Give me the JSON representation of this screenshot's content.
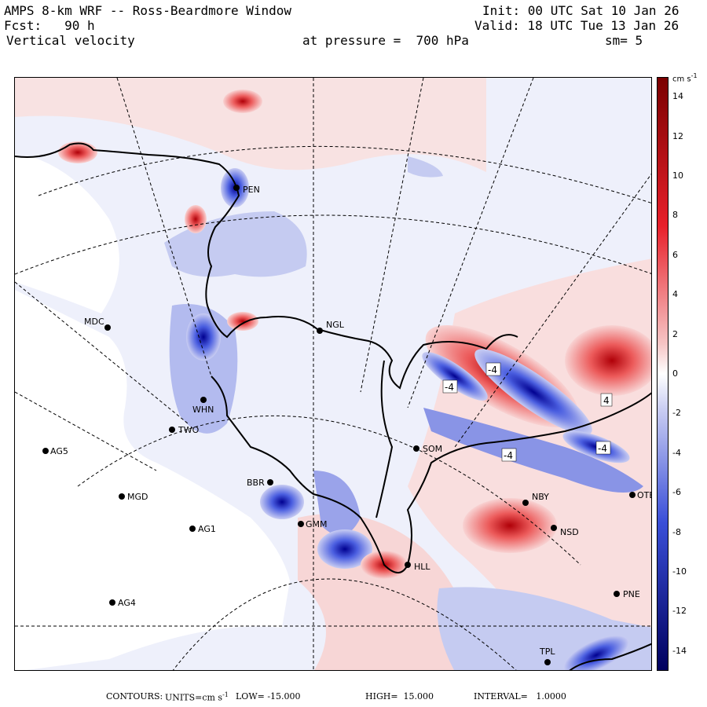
{
  "header": {
    "title": "AMPS 8-km WRF -- Ross-Beardmore Window",
    "fcst": "Fcst:   90 h",
    "field": "Vertical velocity",
    "pressure": "at pressure =  700 hPa",
    "init": "Init: 00 UTC Sat 10 Jan 26",
    "valid": "Valid: 18 UTC Tue 13 Jan 26",
    "smoothing": "sm= 5"
  },
  "colorbar": {
    "unit": "cm s",
    "unit_exp": "-1",
    "labels": [
      "14",
      "12",
      "10",
      "8",
      "6",
      "4",
      "2",
      "0",
      "-2",
      "-4",
      "-6",
      "-8",
      "-10",
      "-12",
      "-14"
    ],
    "range": [
      -15,
      15
    ],
    "colors": {
      "pos_max": "#7a0000",
      "pos_mid": "#e8202a",
      "pos_low": "#f6c6c6",
      "neutral": "#ffffff",
      "neg_low": "#c9cdf2",
      "neg_mid": "#3a4fd8",
      "neg_max": "#00005e"
    }
  },
  "stations": [
    {
      "code": "MDC"
    },
    {
      "code": "NGL"
    },
    {
      "code": "SOM"
    },
    {
      "code": "TWO"
    },
    {
      "code": "AG5"
    },
    {
      "code": "MGD"
    },
    {
      "code": "AG1"
    },
    {
      "code": "AG4"
    },
    {
      "code": "NBY"
    },
    {
      "code": "NSD"
    },
    {
      "code": "PNE"
    },
    {
      "code": "BBR"
    },
    {
      "code": "GMM"
    },
    {
      "code": "TPL"
    },
    {
      "code": "OTE"
    },
    {
      "code": "WHN"
    },
    {
      "code": "HLL"
    },
    {
      "code": "PEN"
    }
  ],
  "contour_labels": [
    "-4",
    "-4",
    "-4",
    "-4",
    "4"
  ],
  "footer": {
    "contours": "CONTOURS:",
    "units_label": "UNITS=cm s",
    "units_exp": "-1",
    "low": "LOW= -15.000",
    "high": "HIGH=  15.000",
    "interval": "INTERVAL=   1.0000"
  }
}
